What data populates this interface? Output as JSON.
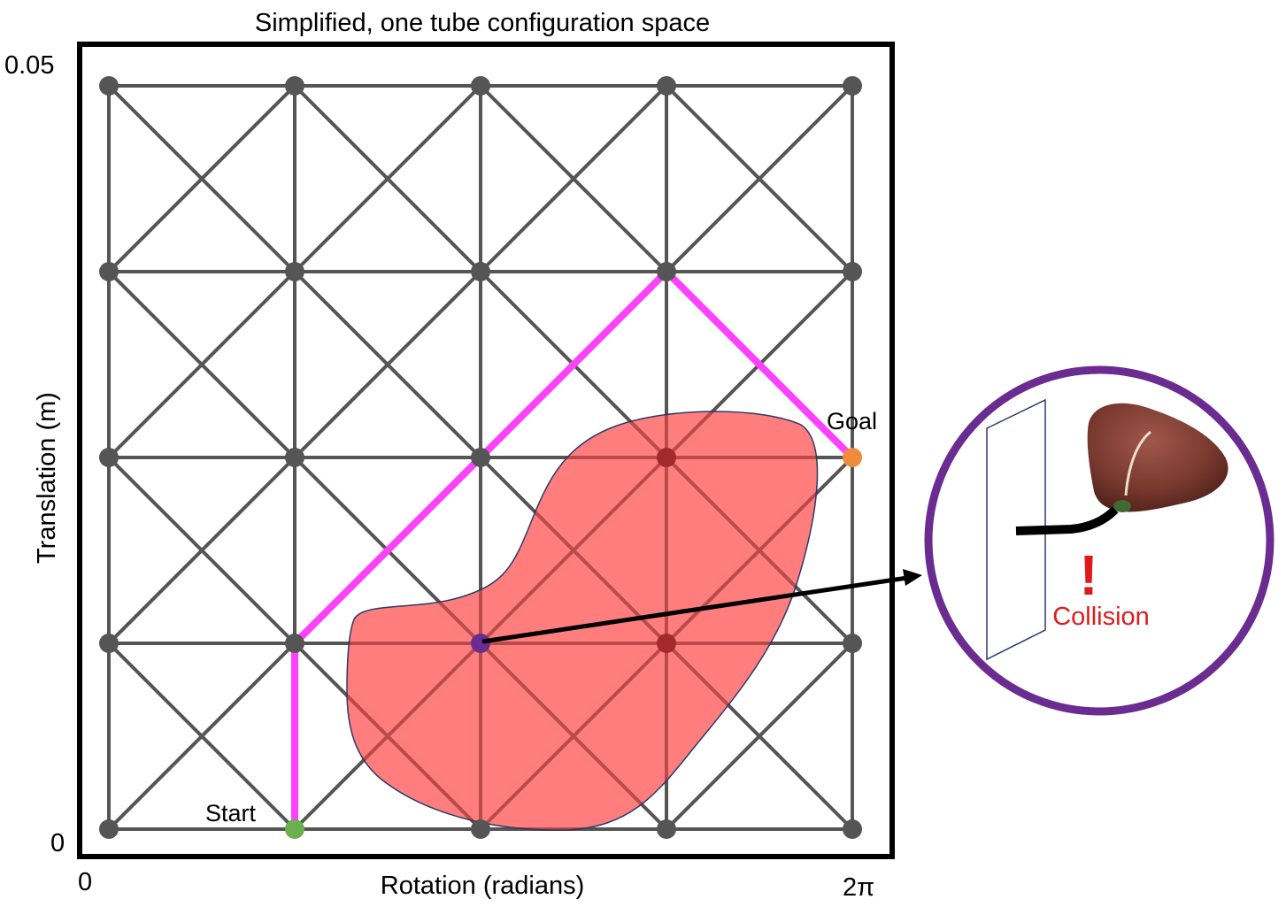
{
  "title": "Simplified, one tube configuration space",
  "axes": {
    "x_label": "Rotation (radians)",
    "y_label": "Translation (m)",
    "x_min_label": "0",
    "x_max_label": "2π",
    "y_min_label": "0",
    "y_max_label": "0.05"
  },
  "grid": {
    "columns": 5,
    "rows": 5,
    "node_color": "#555555",
    "edge_color": "#555555",
    "diagonals": true
  },
  "nodes": {
    "start": {
      "label": "Start",
      "col": 1,
      "row": 0,
      "color": "#6ab04c"
    },
    "goal": {
      "label": "Goal",
      "col": 4,
      "row": 2,
      "color": "#f08a3c"
    },
    "colliding_sample": {
      "col": 2,
      "row": 1,
      "color": "#6a2c91"
    },
    "in_obstacle": [
      {
        "col": 3,
        "row": 2
      },
      {
        "col": 3,
        "row": 1
      }
    ],
    "in_obstacle_color": "#a32a2a"
  },
  "path": {
    "color": "#ff40ff",
    "nodes": [
      [
        1,
        0
      ],
      [
        1,
        1
      ],
      [
        2,
        2
      ],
      [
        3,
        3
      ],
      [
        4,
        2
      ]
    ]
  },
  "obstacle": {
    "fill": "#ff6f6f",
    "stroke": "#2b3a6b"
  },
  "callout": {
    "ring_color": "#6a2c91",
    "warning_mark": "!",
    "warning_text": "Collision",
    "warning_color": "#e01a1a",
    "icons": [
      "wall-plane-icon",
      "tube-icon",
      "liver-icon"
    ]
  }
}
